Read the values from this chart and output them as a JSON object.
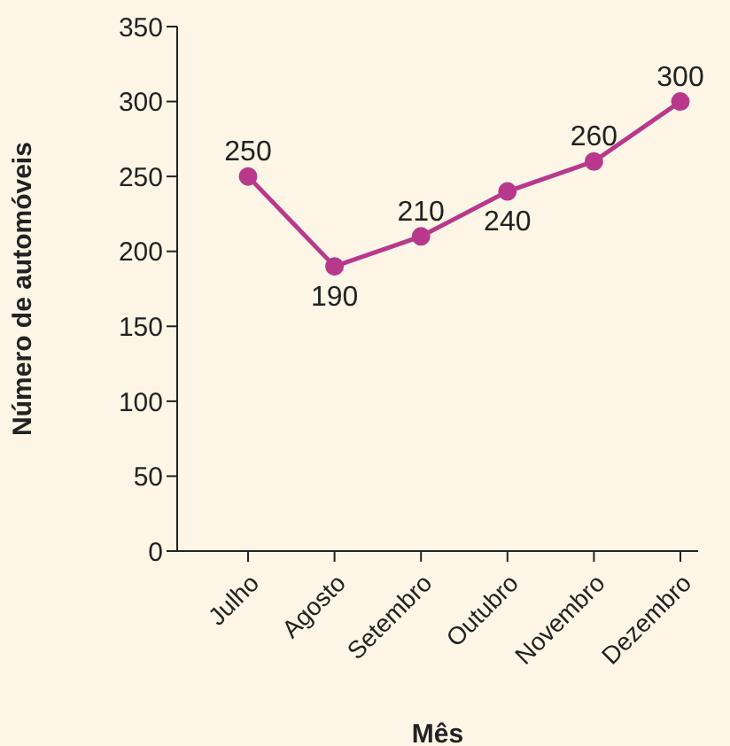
{
  "chart_data": {
    "type": "line",
    "xlabel": "Mês",
    "ylabel": "Número de automóveis",
    "categories": [
      "Julho",
      "Agosto",
      "Setembro",
      "Outubro",
      "Novembro",
      "Dezembro"
    ],
    "series": [
      {
        "color": "#b8398c",
        "values": [
          250,
          190,
          210,
          240,
          260,
          300
        ]
      }
    ],
    "ylim": [
      0,
      350
    ],
    "yticks": [
      0,
      50,
      100,
      150,
      200,
      250,
      300,
      350
    ],
    "grid": false,
    "legend": false,
    "marker": "circle",
    "line_style": "solid",
    "data_labels": true
  }
}
